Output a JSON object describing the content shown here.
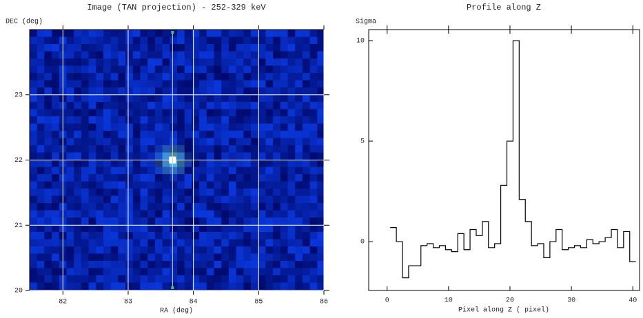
{
  "chart_data": [
    {
      "type": "image",
      "title": "Image (TAN projection) - 252-329 keV",
      "x_label": "RA (deg)",
      "y_label": "DEC (deg)",
      "xlim": [
        81.49,
        86
      ],
      "xticks": [
        82,
        83,
        84,
        85,
        86
      ],
      "ylim": [
        20,
        24
      ],
      "yticks": [
        20,
        21,
        22,
        23
      ],
      "crosshair": [
        83.68,
        22.0
      ],
      "grid": true,
      "grid_color": "#ffffff"
    },
    {
      "type": "step",
      "title": "Profile along Z",
      "x_label": "Pixel along Z ( pixel)",
      "y_label": "Sigma",
      "x": [
        1,
        2,
        3,
        4,
        5,
        6,
        7,
        8,
        9,
        10,
        11,
        12,
        13,
        14,
        15,
        16,
        17,
        18,
        19,
        20,
        21,
        22,
        23,
        24,
        25,
        26,
        27,
        28,
        29,
        30,
        31,
        32,
        33,
        34,
        35,
        36,
        37,
        38,
        39,
        40
      ],
      "series": [
        {
          "color": "#000000",
          "values": [
            0.7,
            0,
            -1.8,
            -1.2,
            -1.2,
            -0.2,
            -0.1,
            -0.3,
            -0.2,
            -0.4,
            -0.5,
            0.4,
            -0.4,
            0.6,
            0.3,
            1.0,
            -0.3,
            -0.1,
            2.8,
            5.0,
            10.0,
            2.1,
            1.0,
            -0.2,
            -0.1,
            -0.8,
            0.0,
            0.6,
            -0.4,
            -0.3,
            -0.2,
            -0.3,
            0.1,
            -0.1,
            0.0,
            0.2,
            0.6,
            -0.3,
            0.5,
            -1.0
          ]
        }
      ],
      "xlim": [
        -3,
        41.1
      ],
      "xticks": [
        0,
        10,
        20,
        30,
        40
      ],
      "ylim": [
        -2.43,
        10.55
      ],
      "yticks": [
        0,
        5,
        10
      ]
    }
  ]
}
